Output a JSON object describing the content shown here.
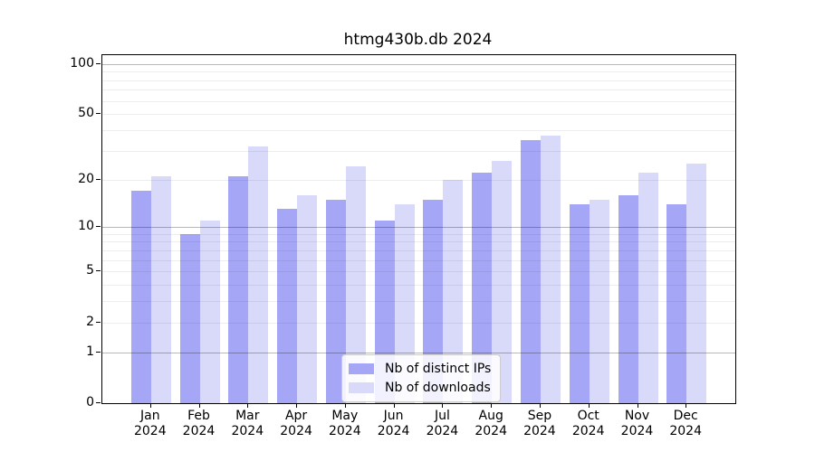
{
  "chart_data": {
    "type": "bar",
    "title": "htmg430b.db 2024",
    "year_label": "2024",
    "categories": [
      "Jan 2024",
      "Feb 2024",
      "Mar 2024",
      "Apr 2024",
      "May 2024",
      "Jun 2024",
      "Jul 2024",
      "Aug 2024",
      "Sep 2024",
      "Oct 2024",
      "Nov 2024",
      "Dec 2024"
    ],
    "month_labels": [
      "Jan",
      "Feb",
      "Mar",
      "Apr",
      "May",
      "Jun",
      "Jul",
      "Aug",
      "Sep",
      "Oct",
      "Nov",
      "Dec"
    ],
    "series": [
      {
        "name": "Nb of distinct IPs",
        "color": "#a6a6f7",
        "values": [
          17,
          9,
          21,
          13,
          15,
          11,
          15,
          22,
          35,
          14,
          16,
          14
        ]
      },
      {
        "name": "Nb of downloads",
        "color": "#d9d9fa",
        "values": [
          21,
          11,
          32,
          16,
          24,
          14,
          20,
          26,
          37,
          15,
          22,
          25
        ]
      }
    ],
    "yscale": "log1p",
    "ylim": [
      0,
      113
    ],
    "yticks": [
      0,
      1,
      2,
      5,
      10,
      20,
      50,
      100
    ],
    "grid": {
      "major_lines": [
        1,
        10,
        100
      ],
      "minor_lines": [
        2,
        3,
        4,
        5,
        6,
        7,
        8,
        9,
        20,
        30,
        40,
        50,
        60,
        70,
        80,
        90
      ]
    },
    "legend_position": "lower center"
  },
  "colors": {
    "distinct_ips_bar": "#a6a6f7",
    "downloads_bar": "#d9d9fa",
    "grid_major": "#b8b8b8",
    "grid_minor": "#ededed",
    "axis_frame": "#000000",
    "legend_border": "#cccccc",
    "background": "#ffffff"
  }
}
